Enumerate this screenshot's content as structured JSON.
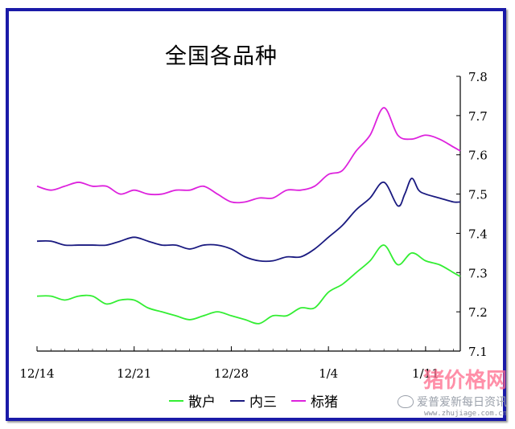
{
  "chart_data": {
    "type": "line",
    "title": "全国各品种",
    "x_tick_labels": [
      "12/14",
      "12/21",
      "12/28",
      "1/4",
      "1/11"
    ],
    "x_tick_days": [
      0,
      7,
      14,
      21,
      28
    ],
    "x_range_days": [
      0,
      30.5
    ],
    "ylim": [
      7.1,
      7.8
    ],
    "y_ticks": [
      "7.1",
      "7.2",
      "7.3",
      "7.4",
      "7.5",
      "7.6",
      "7.7",
      "7.8"
    ],
    "y_axis_side": "right",
    "legend_position": "bottom",
    "grid": false,
    "series": [
      {
        "name": "散户",
        "color": "#33ee33",
        "x": [
          0,
          1,
          2,
          3,
          4,
          5,
          6,
          7,
          8,
          9,
          10,
          11,
          12,
          13,
          14,
          15,
          16,
          17,
          18,
          19,
          20,
          21,
          22,
          23,
          24,
          25,
          26,
          27,
          28,
          29,
          30,
          30.5
        ],
        "y": [
          7.24,
          7.24,
          7.23,
          7.24,
          7.24,
          7.22,
          7.23,
          7.23,
          7.21,
          7.2,
          7.19,
          7.18,
          7.19,
          7.2,
          7.19,
          7.18,
          7.17,
          7.19,
          7.19,
          7.21,
          7.21,
          7.25,
          7.27,
          7.3,
          7.33,
          7.37,
          7.32,
          7.35,
          7.33,
          7.32,
          7.3,
          7.29
        ]
      },
      {
        "name": "内三",
        "color": "#1a1a80",
        "x": [
          0,
          1,
          2,
          3,
          4,
          5,
          6,
          7,
          8,
          9,
          10,
          11,
          12,
          13,
          14,
          15,
          16,
          17,
          18,
          19,
          20,
          21,
          22,
          23,
          24,
          25,
          26,
          26.5,
          27,
          27.5,
          28,
          29,
          30,
          30.5
        ],
        "y": [
          7.38,
          7.38,
          7.37,
          7.37,
          7.37,
          7.37,
          7.38,
          7.39,
          7.38,
          7.37,
          7.37,
          7.36,
          7.37,
          7.37,
          7.36,
          7.34,
          7.33,
          7.33,
          7.34,
          7.34,
          7.36,
          7.39,
          7.42,
          7.46,
          7.49,
          7.53,
          7.47,
          7.5,
          7.54,
          7.51,
          7.5,
          7.49,
          7.48,
          7.48
        ]
      },
      {
        "name": "标猪",
        "color": "#dd22dd",
        "x": [
          0,
          1,
          2,
          3,
          4,
          5,
          6,
          7,
          8,
          9,
          10,
          11,
          12,
          13,
          14,
          15,
          16,
          17,
          18,
          19,
          20,
          21,
          22,
          23,
          24,
          25,
          26,
          27,
          28,
          29,
          30,
          30.5
        ],
        "y": [
          7.52,
          7.51,
          7.52,
          7.53,
          7.52,
          7.52,
          7.5,
          7.51,
          7.5,
          7.5,
          7.51,
          7.51,
          7.52,
          7.5,
          7.48,
          7.48,
          7.49,
          7.49,
          7.51,
          7.51,
          7.52,
          7.55,
          7.56,
          7.61,
          7.65,
          7.72,
          7.65,
          7.64,
          7.65,
          7.64,
          7.62,
          7.61
        ]
      }
    ]
  },
  "watermark": {
    "brand": "猪价格网",
    "account": "爱普爱新每日资讯",
    "url": "www.zhujiage.com.cn"
  }
}
